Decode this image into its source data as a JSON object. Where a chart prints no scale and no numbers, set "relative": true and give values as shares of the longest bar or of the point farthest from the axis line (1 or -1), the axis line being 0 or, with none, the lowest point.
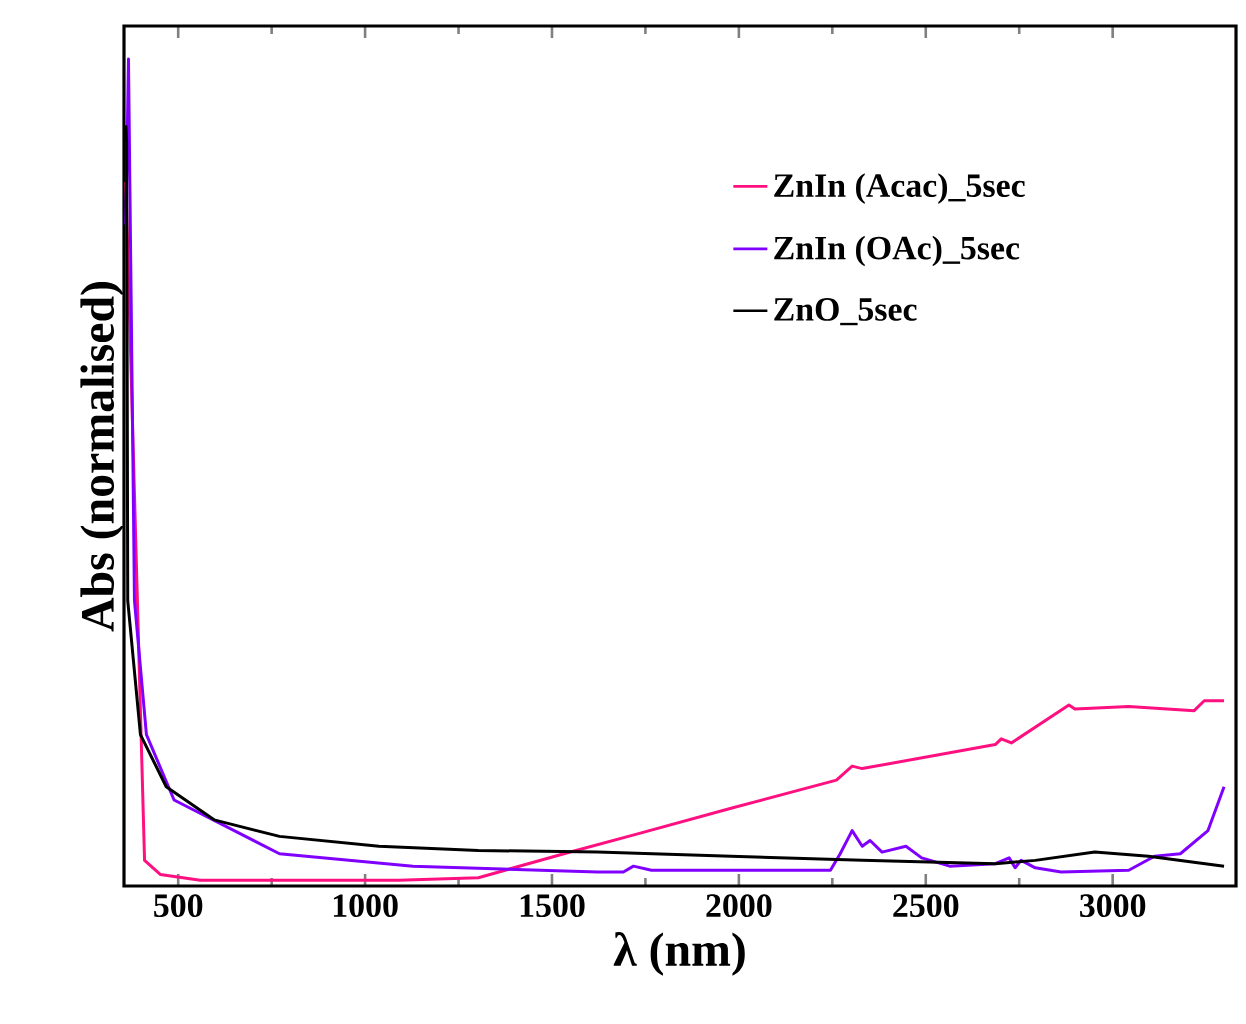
{
  "chart_data": {
    "type": "line",
    "xlabel": "λ (nm)",
    "ylabel": "Abs (normalised)",
    "relative": true,
    "xlim": [
      355,
      3330
    ],
    "xticks": [
      500,
      1000,
      1500,
      2000,
      2500,
      3000
    ],
    "legend": "top right",
    "series": [
      {
        "name": "ZnIn (Acac)_5sec",
        "color": "#ff1080",
        "x": [
          360,
          410,
          452,
          559,
          1090,
          1303,
          1532,
          1729,
          1979,
          2261,
          2303,
          2330,
          2686,
          2702,
          2729,
          2883,
          2899,
          3043,
          3218,
          3245,
          3298
        ],
        "values": [
          0.851,
          0.031,
          0.014,
          0.007,
          0.007,
          0.01,
          0.039,
          0.063,
          0.094,
          0.128,
          0.145,
          0.142,
          0.171,
          0.178,
          0.173,
          0.219,
          0.214,
          0.217,
          0.212,
          0.224,
          0.224
        ]
      },
      {
        "name": "ZnIn (OAc)_5sec",
        "color": "#8000ff",
        "x": [
          360,
          367,
          383,
          415,
          489,
          771,
          1128,
          1622,
          1691,
          1718,
          1766,
          2245,
          2271,
          2303,
          2330,
          2351,
          2383,
          2447,
          2489,
          2564,
          2686,
          2723,
          2739,
          2755,
          2793,
          2862,
          3043,
          3112,
          3181,
          3255,
          3298
        ],
        "values": [
          0.8,
          1.0,
          0.345,
          0.183,
          0.104,
          0.039,
          0.024,
          0.017,
          0.017,
          0.024,
          0.019,
          0.019,
          0.039,
          0.067,
          0.048,
          0.055,
          0.041,
          0.048,
          0.034,
          0.024,
          0.027,
          0.034,
          0.022,
          0.031,
          0.022,
          0.017,
          0.019,
          0.036,
          0.039,
          0.067,
          0.12
        ]
      },
      {
        "name": "ZnO_5sec",
        "color": "#000000",
        "x": [
          360,
          362,
          365,
          399,
          468,
          596,
          771,
          1037,
          1303,
          1622,
          1979,
          2330,
          2686,
          2793,
          2952,
          3096,
          3298
        ],
        "values": [
          0.92,
          0.9,
          0.345,
          0.183,
          0.12,
          0.08,
          0.06,
          0.048,
          0.043,
          0.041,
          0.036,
          0.031,
          0.027,
          0.031,
          0.041,
          0.036,
          0.024
        ]
      }
    ]
  }
}
